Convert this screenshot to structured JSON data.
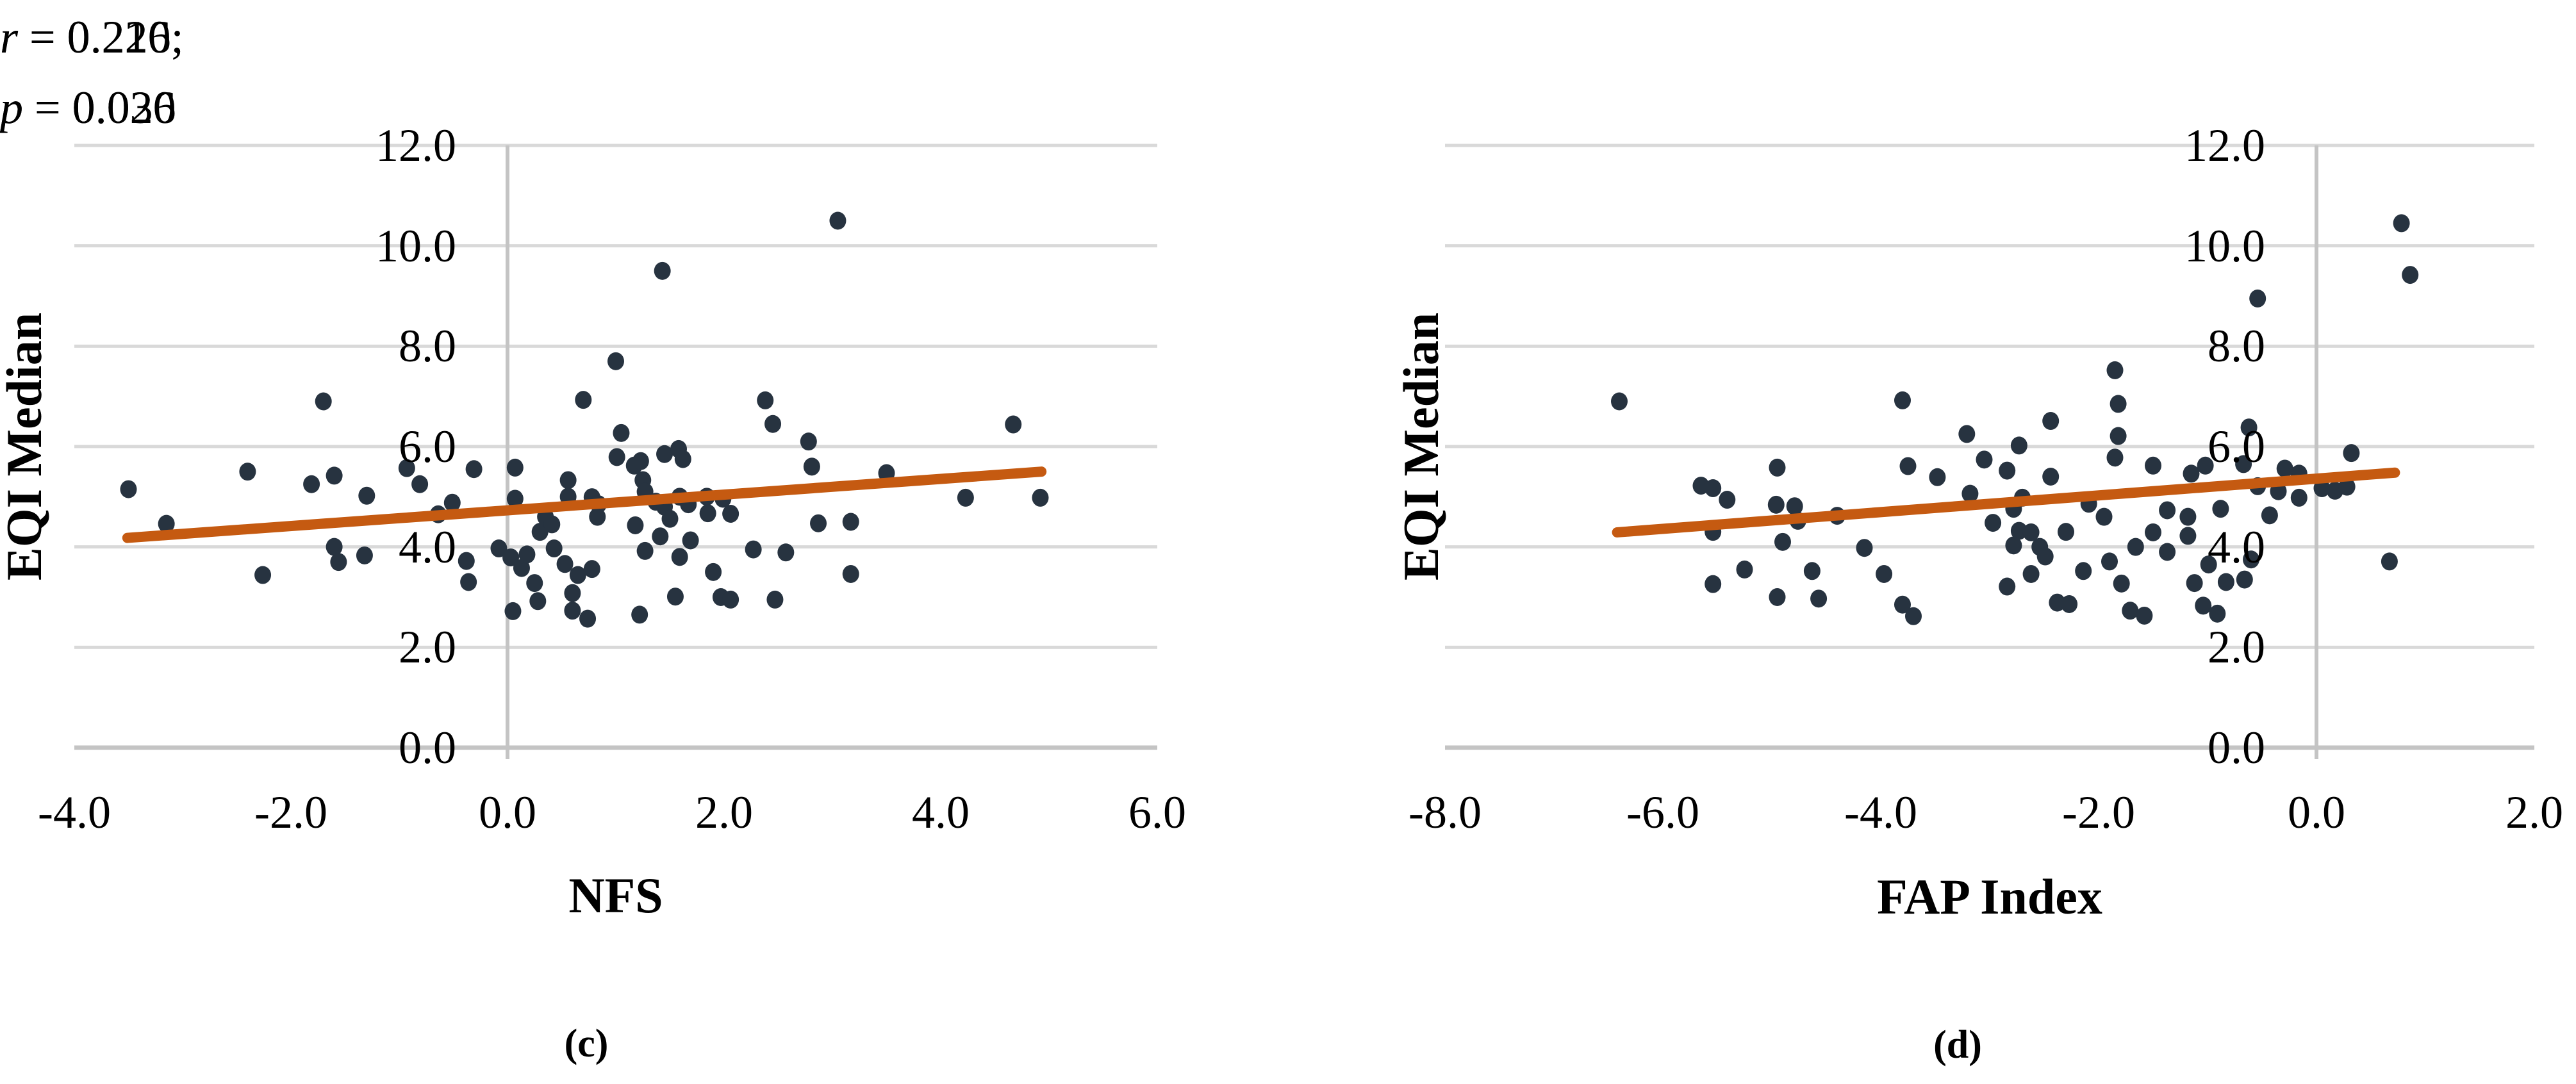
{
  "colors": {
    "point": "#273340",
    "trend_line": "#c55a11",
    "gridline": "#d9d9d9",
    "axis_line": "#c4c4c4",
    "text": "#000000",
    "background": "#ffffff"
  },
  "chart_data": [
    {
      "type": "scatter",
      "panel_label": "(c)",
      "xlabel": "NFS",
      "ylabel": "EQI Median",
      "xlim": [
        -4.0,
        6.0
      ],
      "ylim": [
        0.0,
        12.0
      ],
      "x_ticks": [
        "-4.0",
        "-2.0",
        "0.0",
        "2.0",
        "4.0",
        "6.0"
      ],
      "x_tick_values": [
        -4,
        -2,
        0,
        2,
        4,
        6
      ],
      "y_ticks": [
        "0.0",
        "2.0",
        "4.0",
        "6.0",
        "8.0",
        "10.0",
        "12.0"
      ],
      "y_tick_values": [
        0,
        2,
        4,
        6,
        8,
        10,
        12
      ],
      "grid": "horizontal",
      "legend": "none",
      "stats": {
        "r": 0.21,
        "p": 0.036
      },
      "annotation": {
        "r_var": "r",
        "r_rest": " = 0.210;",
        "p_var": "p",
        "p_rest": " = 0.036"
      },
      "trendline": {
        "x1": -3.51,
        "y1": 4.18,
        "x2": 4.93,
        "y2": 5.5
      },
      "series": [
        {
          "points": [
            [
              -3.5,
              5.15
            ],
            [
              -3.15,
              4.46
            ],
            [
              -2.4,
              5.5
            ],
            [
              -2.26,
              3.44
            ],
            [
              -1.81,
              5.25
            ],
            [
              -1.7,
              6.9
            ],
            [
              -1.6,
              5.42
            ],
            [
              -1.6,
              4.0
            ],
            [
              -1.56,
              3.7
            ],
            [
              -1.32,
              3.83
            ],
            [
              -1.3,
              5.02
            ],
            [
              -0.93,
              5.57
            ],
            [
              -0.81,
              5.25
            ],
            [
              -0.64,
              4.65
            ],
            [
              -0.51,
              4.88
            ],
            [
              -0.38,
              3.72
            ],
            [
              -0.36,
              3.3
            ],
            [
              -0.31,
              5.55
            ],
            [
              -0.08,
              3.97
            ],
            [
              0.03,
              3.79
            ],
            [
              0.07,
              5.58
            ],
            [
              0.07,
              4.96
            ],
            [
              0.05,
              2.72
            ],
            [
              0.13,
              3.58
            ],
            [
              0.18,
              3.85
            ],
            [
              0.25,
              3.28
            ],
            [
              0.28,
              2.92
            ],
            [
              0.3,
              4.3
            ],
            [
              0.35,
              4.6
            ],
            [
              0.41,
              4.45
            ],
            [
              0.43,
              3.97
            ],
            [
              0.53,
              3.66
            ],
            [
              0.56,
              5.33
            ],
            [
              0.56,
              5.0
            ],
            [
              0.6,
              3.08
            ],
            [
              0.6,
              2.73
            ],
            [
              0.65,
              3.44
            ],
            [
              0.7,
              6.93
            ],
            [
              0.74,
              2.57
            ],
            [
              0.78,
              4.99
            ],
            [
              0.78,
              3.56
            ],
            [
              0.84,
              4.85
            ],
            [
              0.83,
              4.6
            ],
            [
              1.0,
              7.7
            ],
            [
              1.01,
              5.79
            ],
            [
              1.05,
              6.27
            ],
            [
              1.17,
              5.62
            ],
            [
              1.18,
              4.43
            ],
            [
              1.22,
              2.65
            ],
            [
              1.23,
              5.71
            ],
            [
              1.25,
              5.33
            ],
            [
              1.27,
              5.1
            ],
            [
              1.27,
              3.92
            ],
            [
              1.37,
              4.9
            ],
            [
              1.41,
              4.21
            ],
            [
              1.43,
              9.5
            ],
            [
              1.45,
              5.85
            ],
            [
              1.45,
              4.8
            ],
            [
              1.5,
              4.56
            ],
            [
              1.55,
              3.01
            ],
            [
              1.58,
              5.95
            ],
            [
              1.62,
              5.75
            ],
            [
              1.59,
              5.0
            ],
            [
              1.59,
              3.8
            ],
            [
              1.67,
              4.85
            ],
            [
              1.69,
              4.13
            ],
            [
              1.84,
              5.0
            ],
            [
              1.85,
              4.67
            ],
            [
              1.9,
              3.5
            ],
            [
              1.97,
              3.0
            ],
            [
              2.06,
              2.95
            ],
            [
              1.99,
              4.96
            ],
            [
              2.06,
              4.66
            ],
            [
              2.27,
              3.95
            ],
            [
              2.38,
              6.92
            ],
            [
              2.45,
              6.45
            ],
            [
              2.47,
              2.95
            ],
            [
              2.57,
              3.89
            ],
            [
              2.78,
              6.1
            ],
            [
              2.81,
              5.6
            ],
            [
              2.87,
              4.47
            ],
            [
              3.05,
              10.5
            ],
            [
              3.17,
              4.5
            ],
            [
              3.17,
              3.46
            ],
            [
              3.5,
              5.47
            ],
            [
              4.23,
              4.98
            ],
            [
              4.67,
              6.44
            ],
            [
              4.92,
              4.98
            ]
          ]
        }
      ]
    },
    {
      "type": "scatter",
      "panel_label": "(d)",
      "xlabel": "FAP Index",
      "ylabel": "EQI Median",
      "xlim": [
        -8.0,
        2.0
      ],
      "ylim": [
        0.0,
        12.0
      ],
      "x_ticks": [
        "-8.0",
        "-6.0",
        "-4.0",
        "-2.0",
        "0.0",
        "2.0"
      ],
      "x_tick_values": [
        -8,
        -6,
        -4,
        -2,
        0,
        2
      ],
      "y_ticks": [
        "0.0",
        "2.0",
        "4.0",
        "6.0",
        "8.0",
        "10.0",
        "12.0"
      ],
      "y_tick_values": [
        0,
        2,
        4,
        6,
        8,
        10,
        12
      ],
      "grid": "horizontal",
      "legend": "none",
      "stats": {
        "r": 0.226,
        "p": 0.02
      },
      "annotation": {
        "r_var": "r",
        "r_rest": " = 0.226;",
        "p_var": "p",
        "p_rest": " = 0.020"
      },
      "trendline": {
        "x1": -6.42,
        "y1": 4.29,
        "x2": 0.72,
        "y2": 5.48
      },
      "series": [
        {
          "points": [
            [
              -6.4,
              6.9
            ],
            [
              -5.65,
              5.22
            ],
            [
              -5.54,
              5.17
            ],
            [
              -5.41,
              4.94
            ],
            [
              -5.54,
              4.3
            ],
            [
              -5.54,
              3.26
            ],
            [
              -5.25,
              3.55
            ],
            [
              -4.95,
              5.58
            ],
            [
              -4.96,
              4.84
            ],
            [
              -4.79,
              4.81
            ],
            [
              -4.76,
              4.52
            ],
            [
              -4.9,
              4.1
            ],
            [
              -4.63,
              3.52
            ],
            [
              -4.95,
              3.0
            ],
            [
              -4.57,
              2.97
            ],
            [
              -4.4,
              4.62
            ],
            [
              -4.15,
              3.98
            ],
            [
              -3.97,
              3.46
            ],
            [
              -3.8,
              2.85
            ],
            [
              -3.7,
              2.62
            ],
            [
              -3.75,
              5.61
            ],
            [
              -3.48,
              5.39
            ],
            [
              -3.8,
              6.92
            ],
            [
              -3.21,
              6.25
            ],
            [
              -3.05,
              5.74
            ],
            [
              -3.18,
              5.06
            ],
            [
              -2.97,
              4.48
            ],
            [
              -2.84,
              5.52
            ],
            [
              -2.73,
              6.02
            ],
            [
              -2.44,
              5.4
            ],
            [
              -2.44,
              6.51
            ],
            [
              -2.73,
              4.32
            ],
            [
              -2.62,
              4.29
            ],
            [
              -2.78,
              4.76
            ],
            [
              -2.78,
              4.03
            ],
            [
              -2.7,
              4.98
            ],
            [
              -2.54,
              4.0
            ],
            [
              -2.49,
              3.81
            ],
            [
              -2.3,
              4.3
            ],
            [
              -2.62,
              3.46
            ],
            [
              -2.84,
              3.21
            ],
            [
              -2.38,
              2.89
            ],
            [
              -2.27,
              2.86
            ],
            [
              -2.14,
              3.52
            ],
            [
              -2.09,
              4.86
            ],
            [
              -1.95,
              4.6
            ],
            [
              -1.9,
              3.71
            ],
            [
              -1.85,
              7.52
            ],
            [
              -1.82,
              6.85
            ],
            [
              -1.82,
              6.21
            ],
            [
              -1.85,
              5.78
            ],
            [
              -1.79,
              3.27
            ],
            [
              -1.71,
              2.73
            ],
            [
              -1.66,
              4.0
            ],
            [
              -1.58,
              2.63
            ],
            [
              -1.5,
              5.62
            ],
            [
              -1.5,
              4.29
            ],
            [
              -1.37,
              4.73
            ],
            [
              -1.37,
              3.9
            ],
            [
              -1.18,
              4.22
            ],
            [
              -1.18,
              4.6
            ],
            [
              -1.15,
              5.46
            ],
            [
              -1.12,
              3.28
            ],
            [
              -1.04,
              2.83
            ],
            [
              -1.02,
              5.62
            ],
            [
              -0.91,
              2.67
            ],
            [
              -0.99,
              3.65
            ],
            [
              -0.88,
              4.76
            ],
            [
              -0.83,
              3.3
            ],
            [
              -0.67,
              5.65
            ],
            [
              -0.66,
              3.35
            ],
            [
              -0.62,
              6.38
            ],
            [
              -0.6,
              3.75
            ],
            [
              -0.54,
              8.95
            ],
            [
              -0.54,
              5.21
            ],
            [
              -0.43,
              4.63
            ],
            [
              -0.35,
              5.11
            ],
            [
              -0.29,
              5.56
            ],
            [
              -0.16,
              4.98
            ],
            [
              -0.16,
              5.46
            ],
            [
              0.05,
              5.17
            ],
            [
              0.17,
              5.12
            ],
            [
              0.28,
              5.2
            ],
            [
              0.32,
              5.87
            ],
            [
              0.67,
              3.71
            ],
            [
              0.78,
              10.45
            ],
            [
              0.86,
              9.42
            ]
          ]
        }
      ]
    }
  ]
}
